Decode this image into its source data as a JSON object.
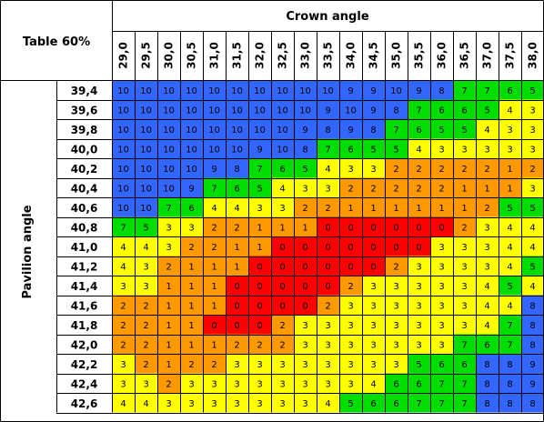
{
  "chart_data": {
    "type": "heatmap",
    "corner_label": "Table 60%",
    "xlabel": "Crown angle",
    "ylabel": "Pavilion angle",
    "x": [
      "29,0",
      "29,5",
      "30,0",
      "30,5",
      "31,0",
      "31,5",
      "32,0",
      "32,5",
      "33,0",
      "33,5",
      "34,0",
      "34,5",
      "35,0",
      "35,5",
      "36,0",
      "36,5",
      "37,0",
      "37,5",
      "38,0"
    ],
    "y": [
      "39,4",
      "39,6",
      "39,8",
      "40,0",
      "40,2",
      "40,4",
      "40,6",
      "40,8",
      "41,0",
      "41,2",
      "41,4",
      "41,6",
      "41,8",
      "42,0",
      "42,2",
      "42,4",
      "42,6"
    ],
    "values": [
      [
        10,
        10,
        10,
        10,
        10,
        10,
        10,
        10,
        10,
        10,
        9,
        9,
        10,
        9,
        8,
        7,
        7,
        6,
        5
      ],
      [
        10,
        10,
        10,
        10,
        10,
        10,
        10,
        10,
        10,
        9,
        10,
        9,
        8,
        7,
        6,
        6,
        5,
        4,
        3
      ],
      [
        10,
        10,
        10,
        10,
        10,
        10,
        10,
        10,
        9,
        8,
        9,
        8,
        7,
        6,
        5,
        5,
        4,
        3,
        3
      ],
      [
        10,
        10,
        10,
        10,
        10,
        10,
        9,
        10,
        8,
        7,
        6,
        5,
        5,
        4,
        3,
        3,
        3,
        3,
        3
      ],
      [
        10,
        10,
        10,
        10,
        9,
        8,
        7,
        6,
        5,
        4,
        3,
        3,
        2,
        2,
        2,
        2,
        2,
        1,
        2
      ],
      [
        10,
        10,
        10,
        9,
        7,
        6,
        5,
        4,
        3,
        3,
        2,
        2,
        2,
        2,
        2,
        1,
        1,
        1,
        3
      ],
      [
        10,
        10,
        7,
        6,
        4,
        4,
        3,
        3,
        2,
        2,
        1,
        1,
        1,
        1,
        1,
        1,
        2,
        5,
        5
      ],
      [
        7,
        5,
        3,
        3,
        2,
        2,
        1,
        1,
        1,
        0,
        0,
        0,
        0,
        0,
        0,
        2,
        3,
        4,
        4
      ],
      [
        4,
        4,
        3,
        2,
        2,
        1,
        1,
        0,
        0,
        0,
        0,
        0,
        0,
        0,
        3,
        3,
        3,
        4,
        4
      ],
      [
        4,
        3,
        2,
        1,
        1,
        1,
        0,
        0,
        0,
        0,
        0,
        0,
        2,
        3,
        3,
        3,
        3,
        4,
        5
      ],
      [
        3,
        3,
        1,
        1,
        1,
        0,
        0,
        0,
        0,
        0,
        2,
        3,
        3,
        3,
        3,
        3,
        4,
        5,
        4
      ],
      [
        2,
        2,
        1,
        1,
        1,
        0,
        0,
        0,
        0,
        2,
        3,
        3,
        3,
        3,
        3,
        3,
        4,
        4,
        8
      ],
      [
        2,
        2,
        1,
        1,
        0,
        0,
        0,
        2,
        3,
        3,
        3,
        3,
        3,
        3,
        3,
        3,
        4,
        7,
        8
      ],
      [
        2,
        2,
        1,
        1,
        1,
        2,
        2,
        2,
        3,
        3,
        3,
        3,
        3,
        3,
        3,
        7,
        6,
        7,
        8
      ],
      [
        3,
        2,
        1,
        2,
        2,
        3,
        3,
        3,
        3,
        3,
        3,
        3,
        3,
        5,
        6,
        6,
        8,
        8,
        9
      ],
      [
        3,
        3,
        2,
        3,
        3,
        3,
        3,
        3,
        3,
        3,
        3,
        4,
        6,
        6,
        7,
        7,
        8,
        8,
        9
      ],
      [
        4,
        4,
        3,
        3,
        3,
        3,
        3,
        3,
        3,
        4,
        5,
        6,
        6,
        7,
        7,
        7,
        8,
        8,
        8
      ]
    ],
    "color_scale": {
      "0": "#ff0000",
      "1": "#ff9900",
      "2": "#ff9900",
      "3": "#ffff00",
      "4": "#ffff00",
      "5": "#00dd00",
      "6": "#00dd00",
      "7": "#00dd00",
      "8": "#3366ff",
      "9": "#3366ff",
      "10": "#3366ff"
    },
    "grid": true
  }
}
